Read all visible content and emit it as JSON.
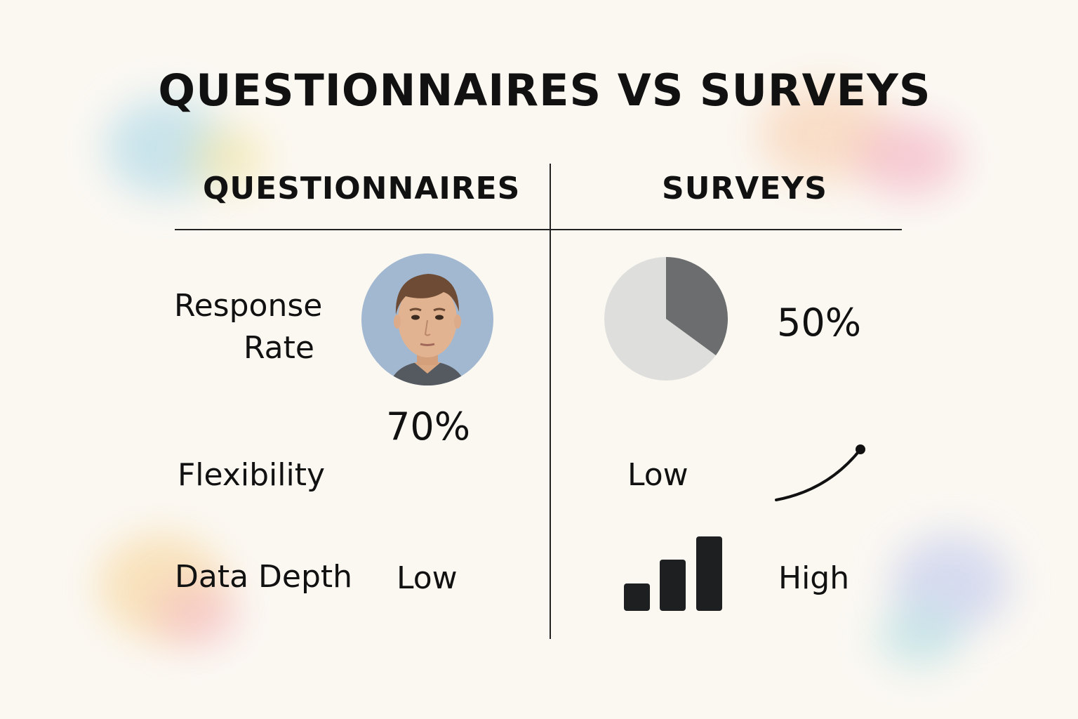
{
  "title": "QUESTIONNAIRES VS SURVEYS",
  "columns": {
    "left": "QUESTIONNAIRES",
    "right": "SURVEYS"
  },
  "rows": {
    "response_rate": {
      "label_line1": "Response",
      "label_line2": "Rate",
      "questionnaires": "70%",
      "surveys": "50%"
    },
    "flexibility": {
      "label": "Flexibility",
      "surveys": "Low"
    },
    "data_depth": {
      "label": "Data Depth",
      "questionnaires": "Low",
      "surveys": "High"
    }
  },
  "icons": {
    "portrait": "person-portrait-icon",
    "pie": "pie-chart-icon",
    "curve": "rising-curve-icon",
    "bars": "bar-chart-icon"
  },
  "colors": {
    "background": "#fbf8f2",
    "text": "#111111",
    "pie_light": "#dedfdc",
    "pie_dark": "#6b6d6e",
    "portrait_bg": "#9fb6cf"
  }
}
